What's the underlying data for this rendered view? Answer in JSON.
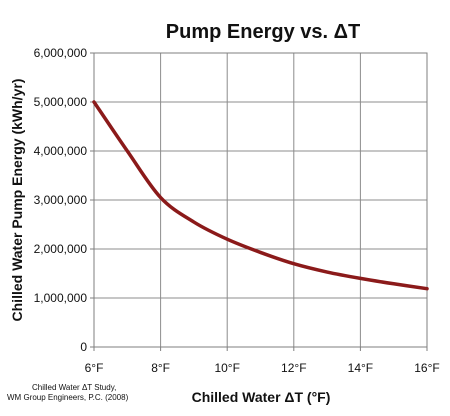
{
  "chart_data": {
    "type": "line",
    "title": "Pump Energy vs. ΔT",
    "xlabel": "Chilled Water ΔT (°F)",
    "ylabel": "Chilled Water Pump Energy (kWh/yr)",
    "x_unit": "°F",
    "xlim": [
      6,
      16
    ],
    "ylim": [
      0,
      6000000
    ],
    "x_ticks": [
      6,
      8,
      10,
      12,
      14,
      16
    ],
    "x_tick_labels": [
      "6°F",
      "8°F",
      "10°F",
      "12°F",
      "14°F",
      "16°F"
    ],
    "y_ticks": [
      0,
      1000000,
      2000000,
      3000000,
      4000000,
      5000000,
      6000000
    ],
    "y_tick_labels": [
      "0",
      "1,000,000",
      "2,000,000",
      "3,000,000",
      "4,000,000",
      "5,000,000",
      "6,000,000"
    ],
    "grid": true,
    "series": [
      {
        "color": "#8b1a1a",
        "x": [
          6,
          7,
          8,
          9,
          10,
          11,
          12,
          13,
          14,
          15,
          16
        ],
        "y": [
          5000000,
          4000000,
          3050000,
          2550000,
          2200000,
          1930000,
          1700000,
          1530000,
          1400000,
          1290000,
          1190000
        ]
      }
    ],
    "source_note": [
      "Chilled Water ΔT Study,",
      "WM Group Engineers, P.C. (2008)"
    ]
  }
}
